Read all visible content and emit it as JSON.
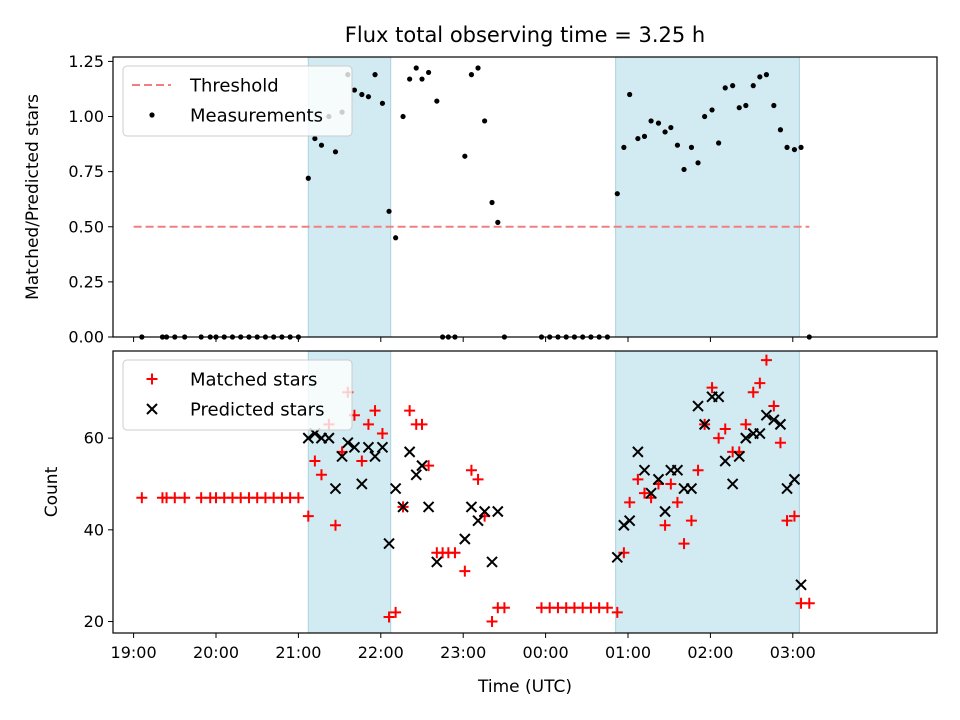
{
  "chart_data": {
    "type": "scatter",
    "title": "Flux total observing time = 3.25 h",
    "xlabel": "Time (UTC)",
    "x_unit": "hours",
    "xlim": [
      18.75,
      28.75
    ],
    "x_ticks": [
      19,
      20,
      21,
      22,
      23,
      24,
      25,
      26,
      27
    ],
    "x_tick_labels": [
      "19:00",
      "20:00",
      "21:00",
      "22:00",
      "23:00",
      "00:00",
      "01:00",
      "02:00",
      "03:00"
    ],
    "shaded_intervals": [
      [
        21.12,
        22.12
      ],
      [
        24.85,
        27.08
      ]
    ],
    "shade_color": "#add8e6",
    "panels": [
      {
        "id": "ratio",
        "ylabel": "Matched/Predicted stars",
        "ylim": [
          0,
          1.27
        ],
        "y_ticks": [
          0,
          0.25,
          0.5,
          0.75,
          1.0,
          1.25
        ],
        "y_tick_labels": [
          "0.00",
          "0.25",
          "0.50",
          "0.75",
          "1.00",
          "1.25"
        ],
        "legend_position": "top-left",
        "threshold": {
          "name": "Threshold",
          "value": 0.5,
          "x_range": [
            19.0,
            27.2
          ],
          "color": "#f08080"
        },
        "series": [
          {
            "name": "Measurements",
            "marker": "dot",
            "color": "#000000",
            "points": [
              [
                19.1,
                0
              ],
              [
                19.35,
                0
              ],
              [
                19.4,
                0
              ],
              [
                19.5,
                0
              ],
              [
                19.62,
                0
              ],
              [
                19.82,
                0
              ],
              [
                19.93,
                0
              ],
              [
                20.0,
                0
              ],
              [
                20.1,
                0
              ],
              [
                20.2,
                0
              ],
              [
                20.3,
                0
              ],
              [
                20.4,
                0
              ],
              [
                20.5,
                0
              ],
              [
                20.6,
                0
              ],
              [
                20.7,
                0
              ],
              [
                20.8,
                0
              ],
              [
                20.9,
                0
              ],
              [
                21.0,
                0
              ],
              [
                21.12,
                0.72
              ],
              [
                21.2,
                0.9
              ],
              [
                21.28,
                0.87
              ],
              [
                21.37,
                1.0
              ],
              [
                21.45,
                0.84
              ],
              [
                21.53,
                1.02
              ],
              [
                21.6,
                1.19
              ],
              [
                21.68,
                1.12
              ],
              [
                21.77,
                1.1
              ],
              [
                21.85,
                1.09
              ],
              [
                21.93,
                1.19
              ],
              [
                22.02,
                1.06
              ],
              [
                22.1,
                0.57
              ],
              [
                22.18,
                0.45
              ],
              [
                22.27,
                1.0
              ],
              [
                22.35,
                1.17
              ],
              [
                22.43,
                1.22
              ],
              [
                22.5,
                1.17
              ],
              [
                22.58,
                1.2
              ],
              [
                22.68,
                1.07
              ],
              [
                22.75,
                0
              ],
              [
                22.82,
                0
              ],
              [
                22.9,
                0
              ],
              [
                23.02,
                0.82
              ],
              [
                23.1,
                1.19
              ],
              [
                23.18,
                1.22
              ],
              [
                23.26,
                0.98
              ],
              [
                23.35,
                0.61
              ],
              [
                23.42,
                0.52
              ],
              [
                23.5,
                0
              ],
              [
                23.95,
                0
              ],
              [
                24.05,
                0
              ],
              [
                24.15,
                0
              ],
              [
                24.25,
                0
              ],
              [
                24.35,
                0
              ],
              [
                24.45,
                0
              ],
              [
                24.55,
                0
              ],
              [
                24.65,
                0
              ],
              [
                24.75,
                0
              ],
              [
                24.87,
                0.65
              ],
              [
                24.95,
                0.86
              ],
              [
                25.02,
                1.1
              ],
              [
                25.12,
                0.9
              ],
              [
                25.2,
                0.91
              ],
              [
                25.28,
                0.98
              ],
              [
                25.37,
                0.97
              ],
              [
                25.45,
                0.93
              ],
              [
                25.52,
                0.95
              ],
              [
                25.6,
                0.87
              ],
              [
                25.68,
                0.76
              ],
              [
                25.77,
                0.86
              ],
              [
                25.85,
                0.79
              ],
              [
                25.93,
                1.0
              ],
              [
                26.02,
                1.03
              ],
              [
                26.1,
                0.88
              ],
              [
                26.18,
                1.13
              ],
              [
                26.27,
                1.14
              ],
              [
                26.35,
                1.04
              ],
              [
                26.43,
                1.05
              ],
              [
                26.52,
                1.14
              ],
              [
                26.6,
                1.18
              ],
              [
                26.68,
                1.19
              ],
              [
                26.77,
                1.05
              ],
              [
                26.85,
                0.94
              ],
              [
                26.93,
                0.86
              ],
              [
                27.02,
                0.85
              ],
              [
                27.1,
                0.86
              ],
              [
                27.2,
                0
              ]
            ]
          }
        ]
      },
      {
        "id": "counts",
        "ylabel": "Count",
        "ylim": [
          17.5,
          79
        ],
        "y_ticks": [
          20,
          40,
          60
        ],
        "y_tick_labels": [
          "20",
          "40",
          "60"
        ],
        "legend_position": "top-left",
        "series": [
          {
            "name": "Matched stars",
            "marker": "plus",
            "color": "#ff0000",
            "points": [
              [
                19.1,
                47
              ],
              [
                19.35,
                47
              ],
              [
                19.4,
                47
              ],
              [
                19.5,
                47
              ],
              [
                19.62,
                47
              ],
              [
                19.82,
                47
              ],
              [
                19.93,
                47
              ],
              [
                20.0,
                47
              ],
              [
                20.1,
                47
              ],
              [
                20.2,
                47
              ],
              [
                20.3,
                47
              ],
              [
                20.4,
                47
              ],
              [
                20.5,
                47
              ],
              [
                20.6,
                47
              ],
              [
                20.7,
                47
              ],
              [
                20.8,
                47
              ],
              [
                20.9,
                47
              ],
              [
                21.0,
                47
              ],
              [
                21.12,
                43
              ],
              [
                21.2,
                55
              ],
              [
                21.28,
                52
              ],
              [
                21.37,
                63
              ],
              [
                21.45,
                41
              ],
              [
                21.53,
                57
              ],
              [
                21.6,
                70
              ],
              [
                21.68,
                65
              ],
              [
                21.77,
                55
              ],
              [
                21.85,
                63
              ],
              [
                21.93,
                66
              ],
              [
                22.02,
                61
              ],
              [
                22.1,
                21
              ],
              [
                22.18,
                22
              ],
              [
                22.27,
                45
              ],
              [
                22.35,
                66
              ],
              [
                22.43,
                63
              ],
              [
                22.5,
                63
              ],
              [
                22.58,
                54
              ],
              [
                22.68,
                35
              ],
              [
                22.75,
                35
              ],
              [
                22.82,
                35
              ],
              [
                22.9,
                35
              ],
              [
                23.02,
                31
              ],
              [
                23.1,
                53
              ],
              [
                23.18,
                51
              ],
              [
                23.26,
                43
              ],
              [
                23.35,
                20
              ],
              [
                23.42,
                23
              ],
              [
                23.5,
                23
              ],
              [
                23.95,
                23
              ],
              [
                24.05,
                23
              ],
              [
                24.15,
                23
              ],
              [
                24.25,
                23
              ],
              [
                24.35,
                23
              ],
              [
                24.45,
                23
              ],
              [
                24.55,
                23
              ],
              [
                24.65,
                23
              ],
              [
                24.75,
                23
              ],
              [
                24.87,
                22
              ],
              [
                24.95,
                35
              ],
              [
                25.02,
                46
              ],
              [
                25.12,
                51
              ],
              [
                25.2,
                48
              ],
              [
                25.28,
                47
              ],
              [
                25.37,
                50
              ],
              [
                25.45,
                41
              ],
              [
                25.52,
                50
              ],
              [
                25.6,
                46
              ],
              [
                25.68,
                37
              ],
              [
                25.77,
                42
              ],
              [
                25.85,
                53
              ],
              [
                25.93,
                63
              ],
              [
                26.02,
                71
              ],
              [
                26.1,
                60
              ],
              [
                26.18,
                62
              ],
              [
                26.27,
                57
              ],
              [
                26.35,
                57
              ],
              [
                26.43,
                63
              ],
              [
                26.52,
                70
              ],
              [
                26.6,
                72
              ],
              [
                26.68,
                77
              ],
              [
                26.77,
                67
              ],
              [
                26.85,
                59
              ],
              [
                26.93,
                42
              ],
              [
                27.02,
                43
              ],
              [
                27.1,
                24
              ],
              [
                27.2,
                24
              ]
            ]
          },
          {
            "name": "Predicted stars",
            "marker": "cross",
            "color": "#000000",
            "points": [
              [
                21.12,
                60
              ],
              [
                21.2,
                61
              ],
              [
                21.28,
                60
              ],
              [
                21.37,
                60
              ],
              [
                21.45,
                49
              ],
              [
                21.53,
                56
              ],
              [
                21.6,
                59
              ],
              [
                21.68,
                58
              ],
              [
                21.77,
                50
              ],
              [
                21.85,
                58
              ],
              [
                21.93,
                56
              ],
              [
                22.02,
                58
              ],
              [
                22.1,
                37
              ],
              [
                22.18,
                49
              ],
              [
                22.27,
                45
              ],
              [
                22.35,
                57
              ],
              [
                22.43,
                52
              ],
              [
                22.5,
                54
              ],
              [
                22.58,
                45
              ],
              [
                22.68,
                33
              ],
              [
                23.02,
                38
              ],
              [
                23.1,
                45
              ],
              [
                23.18,
                42
              ],
              [
                23.26,
                44
              ],
              [
                23.35,
                33
              ],
              [
                23.42,
                44
              ],
              [
                24.87,
                34
              ],
              [
                24.95,
                41
              ],
              [
                25.02,
                42
              ],
              [
                25.12,
                57
              ],
              [
                25.2,
                53
              ],
              [
                25.28,
                48
              ],
              [
                25.37,
                51
              ],
              [
                25.45,
                44
              ],
              [
                25.52,
                53
              ],
              [
                25.6,
                53
              ],
              [
                25.68,
                49
              ],
              [
                25.77,
                49
              ],
              [
                25.85,
                67
              ],
              [
                25.93,
                63
              ],
              [
                26.02,
                69
              ],
              [
                26.1,
                69
              ],
              [
                26.18,
                55
              ],
              [
                26.27,
                50
              ],
              [
                26.35,
                56
              ],
              [
                26.43,
                60
              ],
              [
                26.52,
                61
              ],
              [
                26.6,
                61
              ],
              [
                26.68,
                65
              ],
              [
                26.77,
                64
              ],
              [
                26.85,
                63
              ],
              [
                26.93,
                49
              ],
              [
                27.02,
                51
              ],
              [
                27.1,
                28
              ]
            ]
          }
        ]
      }
    ]
  }
}
